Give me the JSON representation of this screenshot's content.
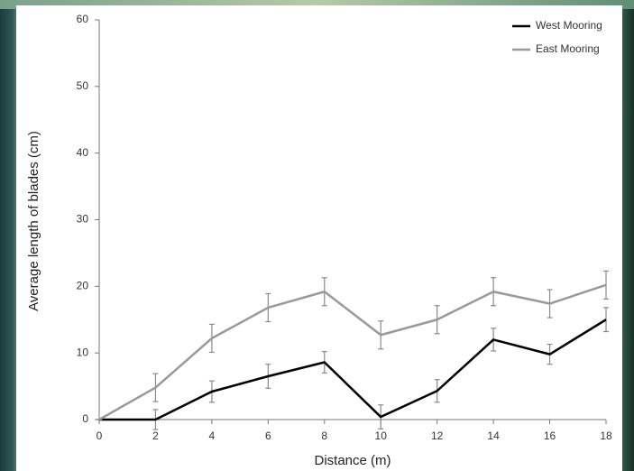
{
  "chart_data": {
    "type": "line",
    "x_label": "Distance (m)",
    "y_label": "Average length of blades (cm)",
    "x": [
      0,
      2,
      4,
      6,
      8,
      10,
      12,
      14,
      16,
      18
    ],
    "xlim": [
      0,
      18
    ],
    "xticks": [
      0,
      2,
      4,
      6,
      8,
      10,
      12,
      14,
      16,
      18
    ],
    "ylim": [
      0,
      60
    ],
    "yticks": [
      0,
      10,
      20,
      30,
      40,
      50,
      60
    ],
    "legend": "top-right",
    "series": [
      {
        "name": "West Mooring",
        "color": "#000000",
        "values": [
          0,
          0,
          4.2,
          6.5,
          8.6,
          0.4,
          4.3,
          12,
          9.8,
          15
        ],
        "errors": [
          0,
          1.5,
          1.6,
          1.8,
          1.6,
          1.8,
          1.7,
          1.7,
          1.5,
          1.8
        ]
      },
      {
        "name": "East Mooring",
        "color": "#999999",
        "values": [
          0,
          4.8,
          12.2,
          16.8,
          19.2,
          12.7,
          15,
          19.2,
          17.4,
          20.2
        ],
        "errors": [
          0,
          2.1,
          2.1,
          2.1,
          2.1,
          2.1,
          2.1,
          2.1,
          2.1,
          2.1
        ]
      }
    ]
  }
}
